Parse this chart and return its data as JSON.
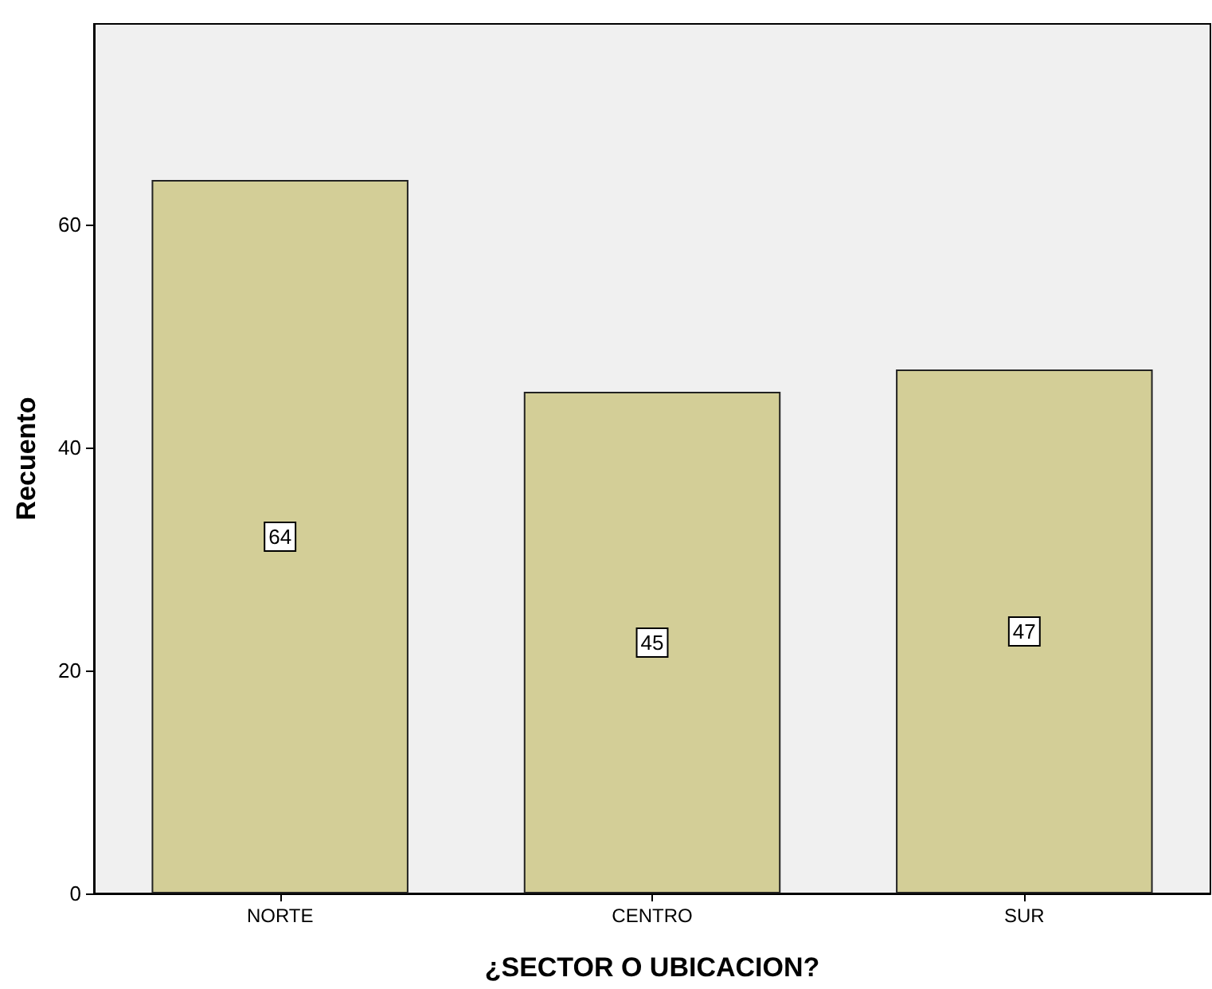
{
  "chart_data": {
    "type": "bar",
    "xlabel": "¿SECTOR O UBICACION?",
    "ylabel": "Recuento",
    "categories": [
      "NORTE",
      "CENTRO",
      "SUR"
    ],
    "values": [
      64,
      45,
      47
    ],
    "color": "#d3ce97",
    "ylim": [
      0,
      78
    ],
    "yticks": [
      0,
      20,
      40,
      60
    ],
    "data_labels": true
  }
}
